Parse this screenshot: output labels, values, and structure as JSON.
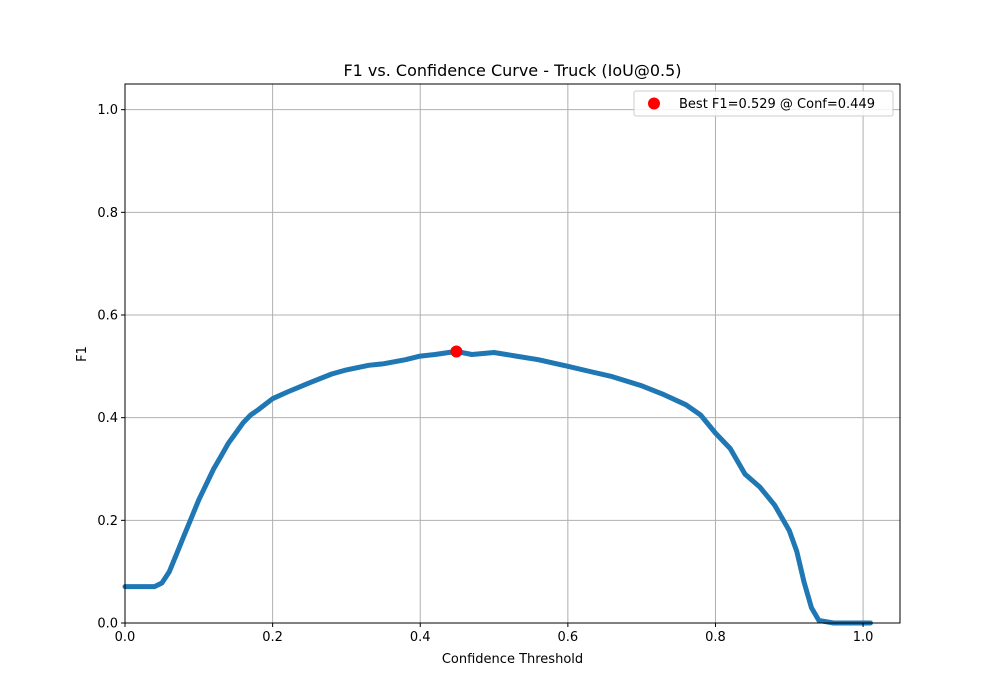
{
  "chart_data": {
    "type": "line",
    "title": "F1 vs. Confidence Curve - Truck (IoU@0.5)",
    "xlabel": "Confidence Threshold",
    "ylabel": "F1",
    "xlim": [
      0,
      1.05
    ],
    "ylim": [
      0,
      1.05
    ],
    "grid": true,
    "legend_position": "top-right",
    "x_ticks": [
      "0.0",
      "0.2",
      "0.4",
      "0.6",
      "0.8",
      "1.0"
    ],
    "y_ticks": [
      "0.0",
      "0.2",
      "0.4",
      "0.6",
      "0.8",
      "1.0"
    ],
    "colors": {
      "curve": "#1f77b4",
      "best_point": "#ff0000",
      "grid": "#b0b0b0"
    },
    "series": [
      {
        "values": [
          [
            0.0,
            0.071
          ],
          [
            0.03,
            0.071
          ],
          [
            0.04,
            0.071
          ],
          [
            0.05,
            0.078
          ],
          [
            0.06,
            0.1
          ],
          [
            0.07,
            0.135
          ],
          [
            0.08,
            0.17
          ],
          [
            0.09,
            0.205
          ],
          [
            0.1,
            0.24
          ],
          [
            0.11,
            0.27
          ],
          [
            0.12,
            0.3
          ],
          [
            0.13,
            0.325
          ],
          [
            0.14,
            0.35
          ],
          [
            0.15,
            0.37
          ],
          [
            0.16,
            0.39
          ],
          [
            0.17,
            0.405
          ],
          [
            0.18,
            0.415
          ],
          [
            0.2,
            0.437
          ],
          [
            0.22,
            0.45
          ],
          [
            0.25,
            0.468
          ],
          [
            0.28,
            0.485
          ],
          [
            0.3,
            0.493
          ],
          [
            0.33,
            0.502
          ],
          [
            0.35,
            0.505
          ],
          [
            0.38,
            0.513
          ],
          [
            0.4,
            0.52
          ],
          [
            0.42,
            0.523
          ],
          [
            0.449,
            0.529
          ],
          [
            0.47,
            0.523
          ],
          [
            0.5,
            0.527
          ],
          [
            0.53,
            0.52
          ],
          [
            0.56,
            0.513
          ],
          [
            0.6,
            0.5
          ],
          [
            0.63,
            0.49
          ],
          [
            0.66,
            0.48
          ],
          [
            0.7,
            0.462
          ],
          [
            0.73,
            0.445
          ],
          [
            0.76,
            0.425
          ],
          [
            0.78,
            0.405
          ],
          [
            0.8,
            0.37
          ],
          [
            0.82,
            0.34
          ],
          [
            0.84,
            0.29
          ],
          [
            0.86,
            0.265
          ],
          [
            0.88,
            0.23
          ],
          [
            0.9,
            0.18
          ],
          [
            0.91,
            0.14
          ],
          [
            0.92,
            0.08
          ],
          [
            0.93,
            0.03
          ],
          [
            0.94,
            0.005
          ],
          [
            0.96,
            0.0
          ],
          [
            1.01,
            0.0
          ]
        ]
      }
    ],
    "best_point": {
      "x": 0.449,
      "y": 0.529
    },
    "legend": {
      "label": "Best F1=0.529 @ Conf=0.449"
    }
  }
}
